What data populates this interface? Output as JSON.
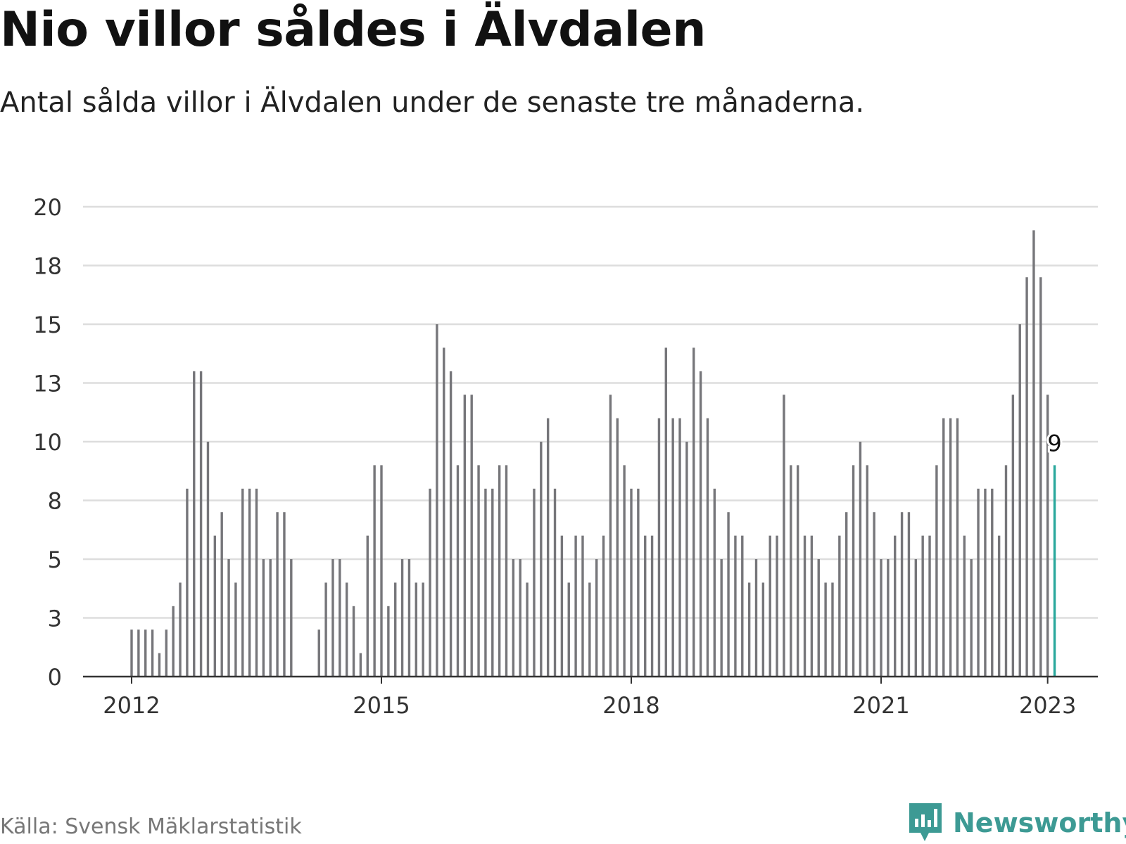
{
  "header": {
    "title": "Nio villor såldes i Älvdalen",
    "subtitle": "Antal sålda villor i Älvdalen under de senaste tre månaderna."
  },
  "footer": {
    "source": "Källa: Svensk Mäklarstatistik",
    "brand": "Newsworthy",
    "brand_icon": "chart-speech-bubble-icon"
  },
  "colors": {
    "bar": "#76767a",
    "highlight": "#2aa89c",
    "grid": "#dddddd",
    "axis": "#333333",
    "brand": "#3d9a94"
  },
  "chart_data": {
    "type": "bar",
    "y_ticks": [
      "0",
      "3",
      "5",
      "8",
      "10",
      "13",
      "15",
      "18",
      "20"
    ],
    "y_tick_values": [
      0,
      2.5,
      5,
      7.5,
      10,
      12.5,
      15,
      17.5,
      20
    ],
    "ylim": [
      0,
      20
    ],
    "x_ticks": [
      {
        "label": "2012",
        "value": 2012.0
      },
      {
        "label": "2015",
        "value": 2015.0
      },
      {
        "label": "2018",
        "value": 2018.0
      },
      {
        "label": "2021",
        "value": 2021.0
      },
      {
        "label": "2023",
        "value": 2023.0
      }
    ],
    "x_start": 2012.0,
    "period_months": 1,
    "values": [
      2,
      2,
      2,
      2,
      1,
      2,
      3,
      4,
      8,
      13,
      13,
      10,
      6,
      7,
      5,
      4,
      8,
      8,
      8,
      5,
      5,
      7,
      7,
      5,
      null,
      null,
      null,
      2,
      4,
      5,
      5,
      4,
      3,
      1,
      6,
      9,
      9,
      3,
      4,
      5,
      5,
      4,
      4,
      8,
      15,
      14,
      13,
      9,
      12,
      12,
      9,
      8,
      8,
      9,
      9,
      5,
      5,
      4,
      8,
      10,
      11,
      8,
      6,
      4,
      6,
      6,
      4,
      5,
      6,
      12,
      11,
      9,
      8,
      8,
      6,
      6,
      11,
      14,
      11,
      11,
      10,
      14,
      13,
      11,
      8,
      5,
      7,
      6,
      6,
      4,
      5,
      4,
      6,
      6,
      12,
      9,
      9,
      6,
      6,
      5,
      4,
      4,
      6,
      7,
      9,
      10,
      9,
      7,
      5,
      5,
      6,
      7,
      7,
      5,
      6,
      6,
      9,
      11,
      11,
      11,
      6,
      5,
      8,
      8,
      8,
      6,
      9,
      12,
      15,
      17,
      19,
      17,
      12,
      9
    ],
    "highlight_last": true,
    "last_value_label": "9",
    "grid": true,
    "legend": "none",
    "title": "Nio villor såldes i Älvdalen",
    "subtitle": "Antal sålda villor i Älvdalen under de senaste tre månaderna.",
    "source": "Källa: Svensk Mäklarstatistik"
  }
}
